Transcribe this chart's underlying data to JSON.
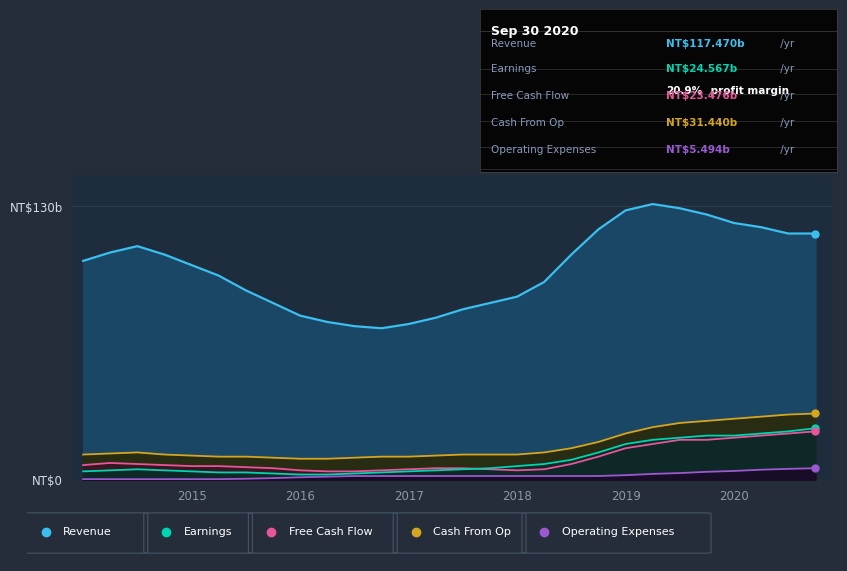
{
  "background_color": "#252d3a",
  "plot_bg_color": "#1e2d3e",
  "x_years": [
    2014.0,
    2014.25,
    2014.5,
    2014.75,
    2015.0,
    2015.25,
    2015.5,
    2015.75,
    2016.0,
    2016.25,
    2016.5,
    2016.75,
    2017.0,
    2017.25,
    2017.5,
    2017.75,
    2018.0,
    2018.25,
    2018.5,
    2018.75,
    2019.0,
    2019.25,
    2019.5,
    2019.75,
    2020.0,
    2020.25,
    2020.5,
    2020.75
  ],
  "revenue": [
    104,
    108,
    111,
    107,
    102,
    97,
    90,
    84,
    78,
    75,
    73,
    72,
    74,
    77,
    81,
    84,
    87,
    94,
    107,
    119,
    128,
    131,
    129,
    126,
    122,
    120,
    117,
    117
  ],
  "cash_from_op": [
    12,
    12.5,
    13,
    12,
    11.5,
    11,
    11,
    10.5,
    10,
    10,
    10.5,
    11,
    11,
    11.5,
    12,
    12,
    12,
    13,
    15,
    18,
    22,
    25,
    27,
    28,
    29,
    30,
    31,
    31.5
  ],
  "free_cash": [
    7,
    8,
    7.5,
    7,
    6.5,
    6.5,
    6,
    5.5,
    4.5,
    4,
    4,
    4.5,
    5,
    5.5,
    5.5,
    5,
    4.5,
    5,
    7.5,
    11,
    15,
    17,
    19,
    19,
    20,
    21,
    22,
    23
  ],
  "earnings": [
    4,
    4.5,
    5,
    4.5,
    4,
    3.5,
    3.5,
    3,
    2.5,
    2.5,
    3,
    3.5,
    4,
    4.5,
    5,
    5.5,
    6.5,
    7.5,
    9.5,
    13,
    17,
    19,
    20,
    21,
    21,
    22,
    23,
    24.5
  ],
  "op_expenses": [
    0.3,
    0.3,
    0.3,
    0.3,
    0.3,
    0.3,
    0.5,
    0.8,
    1.2,
    1.5,
    1.8,
    1.8,
    1.8,
    1.8,
    1.8,
    1.8,
    1.8,
    1.8,
    1.8,
    1.8,
    2.2,
    2.8,
    3.2,
    3.8,
    4.2,
    4.8,
    5.2,
    5.5
  ],
  "colors": {
    "revenue": "#3bbfef",
    "earnings": "#00d4b0",
    "free_cash": "#e8559a",
    "cash_from_op": "#d4a520",
    "op_expenses": "#9b59d0"
  },
  "fill_alpha_revenue": 0.75,
  "fill_revenue_color": "#1a4a6a",
  "fill_cash_color": "#2a2a0a",
  "fill_free_color": "#3a1525",
  "fill_earn_color": "#0a2a28",
  "fill_op_color": "#1a0a28",
  "ylim": [
    0,
    145
  ],
  "ytick_positions": [
    0,
    130
  ],
  "ytick_labels": [
    "NT$0",
    "NT$130b"
  ],
  "xticks": [
    2015,
    2016,
    2017,
    2018,
    2019,
    2020
  ],
  "grid_color": "#2f3f52",
  "infobox": {
    "date": "Sep 30 2020",
    "rows": [
      {
        "label": "Revenue",
        "value": "NT$117.470b",
        "vcolor": "#3bbfef",
        "suffix": " /yr",
        "extra": null
      },
      {
        "label": "Earnings",
        "value": "NT$24.567b",
        "vcolor": "#00d4b0",
        "suffix": " /yr",
        "extra": "20.9% profit margin"
      },
      {
        "label": "Free Cash Flow",
        "value": "NT$23.476b",
        "vcolor": "#e8559a",
        "suffix": " /yr",
        "extra": null
      },
      {
        "label": "Cash From Op",
        "value": "NT$31.440b",
        "vcolor": "#d4a520",
        "suffix": " /yr",
        "extra": null
      },
      {
        "label": "Operating Expenses",
        "value": "NT$5.494b",
        "vcolor": "#9b59d0",
        "suffix": " /yr",
        "extra": null
      }
    ]
  },
  "legend_items": [
    {
      "label": "Revenue",
      "color": "#3bbfef"
    },
    {
      "label": "Earnings",
      "color": "#00d4b0"
    },
    {
      "label": "Free Cash Flow",
      "color": "#e8559a"
    },
    {
      "label": "Cash From Op",
      "color": "#d4a520"
    },
    {
      "label": "Operating Expenses",
      "color": "#9b59d0"
    }
  ]
}
